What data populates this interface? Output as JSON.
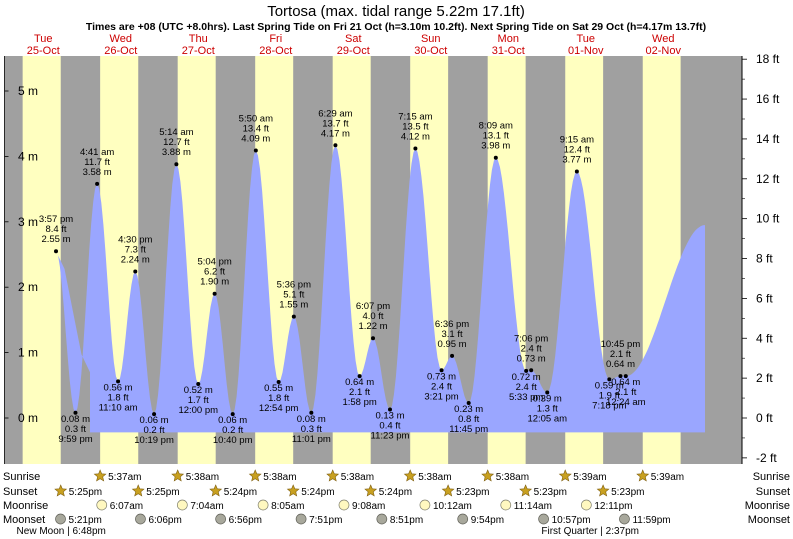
{
  "title": "Tortosa (max. tidal range 5.22m 17.1ft)",
  "subtitle": "Times are +08 (UTC +8.0hrs). Last Spring Tide on Fri 21 Oct (h=3.10m 10.2ft). Next Spring Tide on Sat 29 Oct (h=4.17m 13.7ft)",
  "colors": {
    "day_background": "#ffffc0",
    "night_background": "#a0a0a0",
    "tide_fill": "#9aa6ff",
    "date_label": "#cc0000",
    "sun_icon": "#c8a020",
    "moon_icon": "#a8a89c"
  },
  "chart_data": {
    "type": "area",
    "title": "Tortosa (max. tidal range 5.22m 17.1ft)",
    "start_hour_local": 0,
    "day_columns": [
      {
        "weekday": "Tue",
        "date": "25-Oct"
      },
      {
        "weekday": "Wed",
        "date": "26-Oct"
      },
      {
        "weekday": "Thu",
        "date": "27-Oct"
      },
      {
        "weekday": "Fri",
        "date": "28-Oct"
      },
      {
        "weekday": "Sat",
        "date": "29-Oct"
      },
      {
        "weekday": "Sun",
        "date": "30-Oct"
      },
      {
        "weekday": "Mon",
        "date": "31-Oct"
      },
      {
        "weekday": "Tue",
        "date": "01-Nov"
      },
      {
        "weekday": "Wed",
        "date": "02-Nov"
      }
    ],
    "y_axis_left": {
      "unit": "m",
      "ylim": [
        -0.75,
        5.5
      ],
      "ticks": [
        "0 m",
        "1 m",
        "2 m",
        "3 m",
        "4 m",
        "5 m"
      ],
      "values": [
        0,
        1,
        2,
        3,
        4,
        5
      ]
    },
    "y_axis_right": {
      "unit": "ft",
      "ticks": [
        "-2 ft",
        "0 ft",
        "2 ft",
        "4 ft",
        "6 ft",
        "8 ft",
        "10 ft",
        "12 ft",
        "14 ft",
        "16 ft",
        "18 ft"
      ],
      "values": [
        -2,
        0,
        2,
        4,
        6,
        8,
        10,
        12,
        14,
        16,
        18
      ]
    },
    "tides": [
      {
        "day": 0,
        "time": "3:57 pm",
        "hour": 15.95,
        "ft": "8.4 ft",
        "m": "2.55 m",
        "h": 2.55,
        "type": "high"
      },
      {
        "day": 0,
        "time": "9:59 pm",
        "hour": 21.98,
        "ft": "0.3 ft",
        "m": "0.08 m",
        "h": 0.08,
        "type": "low"
      },
      {
        "day": 1,
        "time": "4:41 am",
        "hour": 4.68,
        "ft": "11.7 ft",
        "m": "3.58 m",
        "h": 3.58,
        "type": "high"
      },
      {
        "day": 1,
        "time": "11:10 am",
        "hour": 11.17,
        "ft": "1.8 ft",
        "m": "0.56 m",
        "h": 0.56,
        "type": "low"
      },
      {
        "day": 1,
        "time": "4:30 pm",
        "hour": 16.5,
        "ft": "7.3 ft",
        "m": "2.24 m",
        "h": 2.24,
        "type": "high"
      },
      {
        "day": 1,
        "time": "10:19 pm",
        "hour": 22.32,
        "ft": "0.2 ft",
        "m": "0.06 m",
        "h": 0.06,
        "type": "low"
      },
      {
        "day": 2,
        "time": "5:14 am",
        "hour": 5.23,
        "ft": "12.7 ft",
        "m": "3.88 m",
        "h": 3.88,
        "type": "high"
      },
      {
        "day": 2,
        "time": "12:00 pm",
        "hour": 12.0,
        "ft": "1.7 ft",
        "m": "0.52 m",
        "h": 0.52,
        "type": "low"
      },
      {
        "day": 2,
        "time": "5:04 pm",
        "hour": 17.07,
        "ft": "6.2 ft",
        "m": "1.90 m",
        "h": 1.9,
        "type": "high"
      },
      {
        "day": 2,
        "time": "10:40 pm",
        "hour": 22.67,
        "ft": "0.2 ft",
        "m": "0.06 m",
        "h": 0.06,
        "type": "low"
      },
      {
        "day": 3,
        "time": "5:50 am",
        "hour": 5.83,
        "ft": "13.4 ft",
        "m": "4.09 m",
        "h": 4.09,
        "type": "high"
      },
      {
        "day": 3,
        "time": "12:54 pm",
        "hour": 12.9,
        "ft": "1.8 ft",
        "m": "0.55 m",
        "h": 0.55,
        "type": "low"
      },
      {
        "day": 3,
        "time": "5:36 pm",
        "hour": 17.6,
        "ft": "5.1 ft",
        "m": "1.55 m",
        "h": 1.55,
        "type": "high"
      },
      {
        "day": 3,
        "time": "11:01 pm",
        "hour": 23.02,
        "ft": "0.3 ft",
        "m": "0.08 m",
        "h": 0.08,
        "type": "low"
      },
      {
        "day": 4,
        "time": "6:29 am",
        "hour": 6.48,
        "ft": "13.7 ft",
        "m": "4.17 m",
        "h": 4.17,
        "type": "high"
      },
      {
        "day": 4,
        "time": "1:58 pm",
        "hour": 13.97,
        "ft": "2.1 ft",
        "m": "0.64 m",
        "h": 0.64,
        "type": "low"
      },
      {
        "day": 4,
        "time": "6:07 pm",
        "hour": 18.12,
        "ft": "4.0 ft",
        "m": "1.22 m",
        "h": 1.22,
        "type": "high"
      },
      {
        "day": 4,
        "time": "11:23 pm",
        "hour": 23.38,
        "ft": "0.4 ft",
        "m": "0.13 m",
        "h": 0.13,
        "type": "low"
      },
      {
        "day": 5,
        "time": "7:15 am",
        "hour": 7.25,
        "ft": "13.5 ft",
        "m": "4.12 m",
        "h": 4.12,
        "type": "high"
      },
      {
        "day": 5,
        "time": "3:21 pm",
        "hour": 15.35,
        "ft": "2.4 ft",
        "m": "0.73 m",
        "h": 0.73,
        "type": "low"
      },
      {
        "day": 5,
        "time": "6:36 pm",
        "hour": 18.6,
        "ft": "3.1 ft",
        "m": "0.95 m",
        "h": 0.95,
        "type": "high"
      },
      {
        "day": 5,
        "time": "11:45 pm",
        "hour": 23.75,
        "ft": "0.8 ft",
        "m": "0.23 m",
        "h": 0.23,
        "type": "low"
      },
      {
        "day": 6,
        "time": "8:09 am",
        "hour": 8.15,
        "ft": "13.1 ft",
        "m": "3.98 m",
        "h": 3.98,
        "type": "high"
      },
      {
        "day": 6,
        "time": "5:33 pm",
        "hour": 17.55,
        "ft": "2.4 ft",
        "m": "0.72 m",
        "h": 0.72,
        "type": "low"
      },
      {
        "day": 6,
        "time": "7:06 pm",
        "hour": 19.1,
        "ft": "2.4 ft",
        "m": "0.73 m",
        "h": 0.73,
        "type": "high"
      },
      {
        "day": 7,
        "time": "12:05 am",
        "hour": 0.08,
        "ft": "1.3 ft",
        "m": "0.39 m",
        "h": 0.39,
        "type": "low"
      },
      {
        "day": 7,
        "time": "9:15 am",
        "hour": 9.25,
        "ft": "12.4 ft",
        "m": "3.77 m",
        "h": 3.77,
        "type": "high"
      },
      {
        "day": 7,
        "time": "7:18 pm",
        "hour": 19.3,
        "ft": "1.9 ft",
        "m": "0.59 m",
        "h": 0.59,
        "type": "low"
      },
      {
        "day": 7,
        "time": "10:45 pm",
        "hour": 22.75,
        "ft": "2.1 ft",
        "m": "0.64 m",
        "h": 0.64,
        "type": "high"
      },
      {
        "day": 8,
        "time": "12:24 am",
        "hour": 0.4,
        "ft": "2.1 ft",
        "m": "0.64 m",
        "h": 0.64,
        "type": "low"
      }
    ],
    "grid": false,
    "legend": "none"
  },
  "ephemeris": {
    "row_labels": [
      "Sunrise",
      "Sunset",
      "Moonrise",
      "Moonset"
    ],
    "sunrise": [
      {
        "day": 1,
        "hour": 5.617,
        "label": "5:37am"
      },
      {
        "day": 2,
        "hour": 5.633,
        "label": "5:38am"
      },
      {
        "day": 3,
        "hour": 5.633,
        "label": "5:38am"
      },
      {
        "day": 4,
        "hour": 5.633,
        "label": "5:38am"
      },
      {
        "day": 5,
        "hour": 5.633,
        "label": "5:38am"
      },
      {
        "day": 6,
        "hour": 5.633,
        "label": "5:38am"
      },
      {
        "day": 7,
        "hour": 5.65,
        "label": "5:39am"
      },
      {
        "day": 8,
        "hour": 5.65,
        "label": "5:39am"
      }
    ],
    "sunset": [
      {
        "day": 0,
        "hour": 17.417,
        "label": "5:25pm"
      },
      {
        "day": 1,
        "hour": 17.417,
        "label": "5:25pm"
      },
      {
        "day": 2,
        "hour": 17.4,
        "label": "5:24pm"
      },
      {
        "day": 3,
        "hour": 17.4,
        "label": "5:24pm"
      },
      {
        "day": 4,
        "hour": 17.4,
        "label": "5:24pm"
      },
      {
        "day": 5,
        "hour": 17.383,
        "label": "5:23pm"
      },
      {
        "day": 6,
        "hour": 17.383,
        "label": "5:23pm"
      },
      {
        "day": 7,
        "hour": 17.383,
        "label": "5:23pm"
      }
    ],
    "moonrise": [
      {
        "day": 1,
        "hour": 6.117,
        "label": "6:07am"
      },
      {
        "day": 2,
        "hour": 7.067,
        "label": "7:04am"
      },
      {
        "day": 3,
        "hour": 8.083,
        "label": "8:05am"
      },
      {
        "day": 4,
        "hour": 9.133,
        "label": "9:08am"
      },
      {
        "day": 5,
        "hour": 10.2,
        "label": "10:12am"
      },
      {
        "day": 6,
        "hour": 11.233,
        "label": "11:14am"
      },
      {
        "day": 7,
        "hour": 12.183,
        "label": "12:11pm"
      }
    ],
    "moonset": [
      {
        "day": 0,
        "hour": 17.35,
        "label": "5:21pm"
      },
      {
        "day": 1,
        "hour": 18.1,
        "label": "6:06pm"
      },
      {
        "day": 2,
        "hour": 18.933,
        "label": "6:56pm"
      },
      {
        "day": 3,
        "hour": 19.85,
        "label": "7:51pm"
      },
      {
        "day": 4,
        "hour": 20.85,
        "label": "8:51pm"
      },
      {
        "day": 5,
        "hour": 21.9,
        "label": "9:54pm"
      },
      {
        "day": 6,
        "hour": 22.95,
        "label": "10:57pm"
      },
      {
        "day": 7,
        "hour": 23.983,
        "label": "11:59pm"
      }
    ],
    "moon_phases": [
      {
        "day": 0,
        "hour": 18.8,
        "label": "New Moon | 6:48pm"
      },
      {
        "day": 7,
        "hour": 14.617,
        "label": "First Quarter | 2:37pm"
      }
    ]
  }
}
